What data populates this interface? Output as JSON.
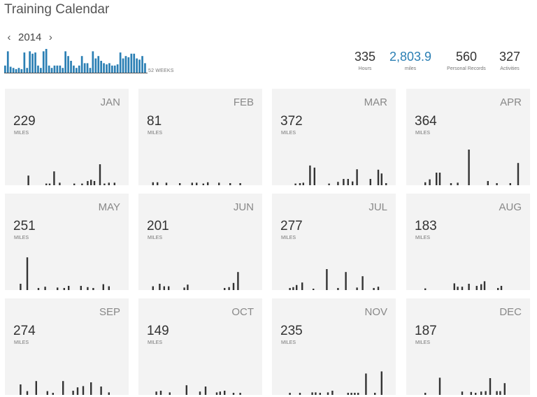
{
  "header": {
    "title": "Training Calendar"
  },
  "year_nav": {
    "prev_icon": "chevron-left-icon",
    "year": "2014",
    "next_icon": "chevron-right-icon"
  },
  "weekly_chart": {
    "label": "52 WEEKS",
    "color": "#2b7fb4",
    "values": [
      0.3,
      0.9,
      0.25,
      0.2,
      0.15,
      0.2,
      0.15,
      0.85,
      0.2,
      0.9,
      0.8,
      0.85,
      0.3,
      0.2,
      0.9,
      1.0,
      0.3,
      0.2,
      0.3,
      0.3,
      0.3,
      0.2,
      0.9,
      0.7,
      0.5,
      0.3,
      0.2,
      0.3,
      0.7,
      0.4,
      0.4,
      0.2,
      0.9,
      0.6,
      0.7,
      0.5,
      0.4,
      0.35,
      0.4,
      0.3,
      0.3,
      0.35,
      0.85,
      0.6,
      0.7,
      0.65,
      0.8,
      0.8,
      0.6,
      0.55,
      0.7,
      0.4
    ]
  },
  "stats": [
    {
      "value": "335",
      "label": "Hours",
      "accent": false
    },
    {
      "value": "2,803.9",
      "label": "miles",
      "accent": true
    },
    {
      "value": "560",
      "label": "Personal Records",
      "accent": false
    },
    {
      "value": "327",
      "label": "Activities",
      "accent": false
    }
  ],
  "months": [
    {
      "name": "JAN",
      "miles": "229",
      "unit": "MILES",
      "runs": [
        [
          0.14,
          0.23
        ],
        [
          0.3,
          0.04
        ],
        [
          0.33,
          0.04
        ],
        [
          0.37,
          0.33
        ],
        [
          0.42,
          0.06
        ],
        [
          0.55,
          0.04
        ],
        [
          0.62,
          0.04
        ],
        [
          0.67,
          0.1
        ],
        [
          0.7,
          0.13
        ],
        [
          0.73,
          0.1
        ],
        [
          0.78,
          0.5
        ],
        [
          0.82,
          0.04
        ],
        [
          0.86,
          0.06
        ],
        [
          0.91,
          0.06
        ]
      ]
    },
    {
      "name": "FEB",
      "miles": "81",
      "unit": "MILES",
      "runs": [
        [
          0.06,
          0.07
        ],
        [
          0.1,
          0.07
        ],
        [
          0.18,
          0.06
        ],
        [
          0.3,
          0.05
        ],
        [
          0.41,
          0.06
        ],
        [
          0.45,
          0.06
        ],
        [
          0.51,
          0.04
        ],
        [
          0.55,
          0.07
        ],
        [
          0.65,
          0.06
        ],
        [
          0.75,
          0.05
        ],
        [
          0.84,
          0.05
        ]
      ]
    },
    {
      "name": "MAR",
      "miles": "372",
      "unit": "MILES",
      "runs": [
        [
          0.14,
          0.04
        ],
        [
          0.18,
          0.05
        ],
        [
          0.21,
          0.06
        ],
        [
          0.27,
          0.47
        ],
        [
          0.31,
          0.42
        ],
        [
          0.44,
          0.04
        ],
        [
          0.52,
          0.08
        ],
        [
          0.57,
          0.15
        ],
        [
          0.61,
          0.15
        ],
        [
          0.65,
          0.09
        ],
        [
          0.69,
          0.38
        ],
        [
          0.81,
          0.15
        ],
        [
          0.88,
          0.37
        ],
        [
          0.91,
          0.28
        ],
        [
          0.95,
          0.05
        ]
      ]
    },
    {
      "name": "APR",
      "miles": "364",
      "unit": "MILES",
      "runs": [
        [
          0.1,
          0.07
        ],
        [
          0.14,
          0.14
        ],
        [
          0.2,
          0.3
        ],
        [
          0.23,
          0.3
        ],
        [
          0.33,
          0.05
        ],
        [
          0.39,
          0.06
        ],
        [
          0.49,
          0.85
        ],
        [
          0.66,
          0.1
        ],
        [
          0.74,
          0.05
        ],
        [
          0.86,
          0.05
        ],
        [
          0.93,
          0.53
        ]
      ]
    },
    {
      "name": "MAY",
      "miles": "251",
      "unit": "MILES",
      "runs": [
        [
          0.07,
          0.15
        ],
        [
          0.13,
          0.78
        ],
        [
          0.23,
          0.05
        ],
        [
          0.29,
          0.08
        ],
        [
          0.4,
          0.06
        ],
        [
          0.46,
          0.05
        ],
        [
          0.5,
          0.1
        ],
        [
          0.61,
          0.1
        ],
        [
          0.67,
          0.07
        ],
        [
          0.72,
          0.05
        ],
        [
          0.81,
          0.14
        ],
        [
          0.86,
          0.09
        ]
      ]
    },
    {
      "name": "JUN",
      "miles": "201",
      "unit": "MILES",
      "runs": [
        [
          0.06,
          0.09
        ],
        [
          0.12,
          0.15
        ],
        [
          0.16,
          0.09
        ],
        [
          0.2,
          0.09
        ],
        [
          0.34,
          0.06
        ],
        [
          0.37,
          0.13
        ],
        [
          0.7,
          0.05
        ],
        [
          0.74,
          0.07
        ],
        [
          0.78,
          0.17
        ],
        [
          0.82,
          0.43
        ]
      ]
    },
    {
      "name": "JUL",
      "miles": "277",
      "unit": "MILES",
      "runs": [
        [
          0.09,
          0.05
        ],
        [
          0.12,
          0.07
        ],
        [
          0.15,
          0.12
        ],
        [
          0.2,
          0.18
        ],
        [
          0.3,
          0.03
        ],
        [
          0.42,
          0.5
        ],
        [
          0.52,
          0.05
        ],
        [
          0.59,
          0.43
        ],
        [
          0.69,
          0.06
        ],
        [
          0.74,
          0.33
        ],
        [
          0.84,
          0.05
        ],
        [
          0.88,
          0.08
        ]
      ]
    },
    {
      "name": "AUG",
      "miles": "183",
      "unit": "MILES",
      "runs": [
        [
          0.1,
          0.04
        ],
        [
          0.36,
          0.16
        ],
        [
          0.39,
          0.08
        ],
        [
          0.43,
          0.08
        ],
        [
          0.49,
          0.15
        ],
        [
          0.56,
          0.1
        ],
        [
          0.6,
          0.14
        ],
        [
          0.63,
          0.21
        ],
        [
          0.75,
          0.05
        ],
        [
          0.78,
          0.1
        ]
      ]
    },
    {
      "name": "SEP",
      "miles": "274",
      "unit": "MILES",
      "runs": [
        [
          0.07,
          0.25
        ],
        [
          0.13,
          0.09
        ],
        [
          0.21,
          0.33
        ],
        [
          0.31,
          0.09
        ],
        [
          0.36,
          0.05
        ],
        [
          0.45,
          0.33
        ],
        [
          0.54,
          0.1
        ],
        [
          0.58,
          0.18
        ],
        [
          0.63,
          0.21
        ],
        [
          0.7,
          0.3
        ],
        [
          0.79,
          0.2
        ],
        [
          0.86,
          0.06
        ]
      ]
    },
    {
      "name": "OCT",
      "miles": "149",
      "unit": "MILES",
      "runs": [
        [
          0.09,
          0.08
        ],
        [
          0.13,
          0.1
        ],
        [
          0.21,
          0.06
        ],
        [
          0.36,
          0.23
        ],
        [
          0.48,
          0.08
        ],
        [
          0.53,
          0.2
        ],
        [
          0.63,
          0.06
        ],
        [
          0.66,
          0.08
        ],
        [
          0.7,
          0.1
        ],
        [
          0.78,
          0.05
        ],
        [
          0.84,
          0.05
        ]
      ]
    },
    {
      "name": "NOV",
      "miles": "235",
      "unit": "MILES",
      "runs": [
        [
          0.09,
          0.05
        ],
        [
          0.18,
          0.05
        ],
        [
          0.29,
          0.06
        ],
        [
          0.32,
          0.06
        ],
        [
          0.36,
          0.05
        ],
        [
          0.43,
          0.06
        ],
        [
          0.47,
          0.1
        ],
        [
          0.61,
          0.05
        ],
        [
          0.64,
          0.05
        ],
        [
          0.67,
          0.05
        ],
        [
          0.7,
          0.05
        ],
        [
          0.77,
          0.51
        ],
        [
          0.85,
          0.05
        ],
        [
          0.91,
          0.56
        ]
      ]
    },
    {
      "name": "DEC",
      "miles": "187",
      "unit": "MILES",
      "runs": [
        [
          0.1,
          0.05
        ],
        [
          0.23,
          0.41
        ],
        [
          0.43,
          0.08
        ],
        [
          0.51,
          0.07
        ],
        [
          0.55,
          0.05
        ],
        [
          0.6,
          0.08
        ],
        [
          0.64,
          0.09
        ],
        [
          0.68,
          0.4
        ],
        [
          0.74,
          0.09
        ],
        [
          0.77,
          0.09
        ],
        [
          0.81,
          0.28
        ]
      ]
    }
  ]
}
